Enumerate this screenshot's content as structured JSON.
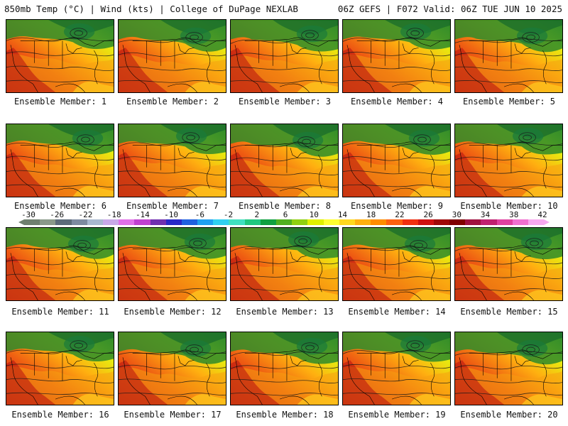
{
  "header": {
    "left": "850mb Temp (°C) | Wind (kts) | College of DuPage NEXLAB",
    "right": "06Z GEFS | F072 Valid: 06Z TUE JUN 10 2025"
  },
  "panels": [
    {
      "label": "Ensemble Member: 1"
    },
    {
      "label": "Ensemble Member: 2"
    },
    {
      "label": "Ensemble Member: 3"
    },
    {
      "label": "Ensemble Member: 4"
    },
    {
      "label": "Ensemble Member: 5"
    },
    {
      "label": "Ensemble Member: 6"
    },
    {
      "label": "Ensemble Member: 7"
    },
    {
      "label": "Ensemble Member: 8"
    },
    {
      "label": "Ensemble Member: 9"
    },
    {
      "label": "Ensemble Member: 10"
    },
    {
      "label": "Ensemble Member: 11"
    },
    {
      "label": "Ensemble Member: 12"
    },
    {
      "label": "Ensemble Member: 13"
    },
    {
      "label": "Ensemble Member: 14"
    },
    {
      "label": "Ensemble Member: 15"
    },
    {
      "label": "Ensemble Member: 16"
    },
    {
      "label": "Ensemble Member: 17"
    },
    {
      "label": "Ensemble Member: 18"
    },
    {
      "label": "Ensemble Member: 19"
    },
    {
      "label": "Ensemble Member: 20"
    }
  ],
  "colorbar": {
    "ticks": [
      "-30",
      "-26",
      "-22",
      "-18",
      "-14",
      "-10",
      "-6",
      "-2",
      "2",
      "6",
      "10",
      "14",
      "18",
      "22",
      "26",
      "30",
      "34",
      "38",
      "42"
    ],
    "colors": [
      "#6f7f6f",
      "#8a998a",
      "#5c6b7a",
      "#7d8aa0",
      "#a9b8d0",
      "#c8a8e8",
      "#e070e8",
      "#c040d0",
      "#7030b0",
      "#2828c8",
      "#2060e0",
      "#20a0f0",
      "#30d0f0",
      "#40e0c0",
      "#20c880",
      "#10a040",
      "#50b020",
      "#90d010",
      "#e0f000",
      "#ffff30",
      "#ffd820",
      "#ffb010",
      "#ff8c00",
      "#ff6010",
      "#f03010",
      "#d01010",
      "#a00808",
      "#800000",
      "#a01040",
      "#c02070",
      "#e040a0",
      "#f070d0",
      "#f8a8f0"
    ]
  }
}
